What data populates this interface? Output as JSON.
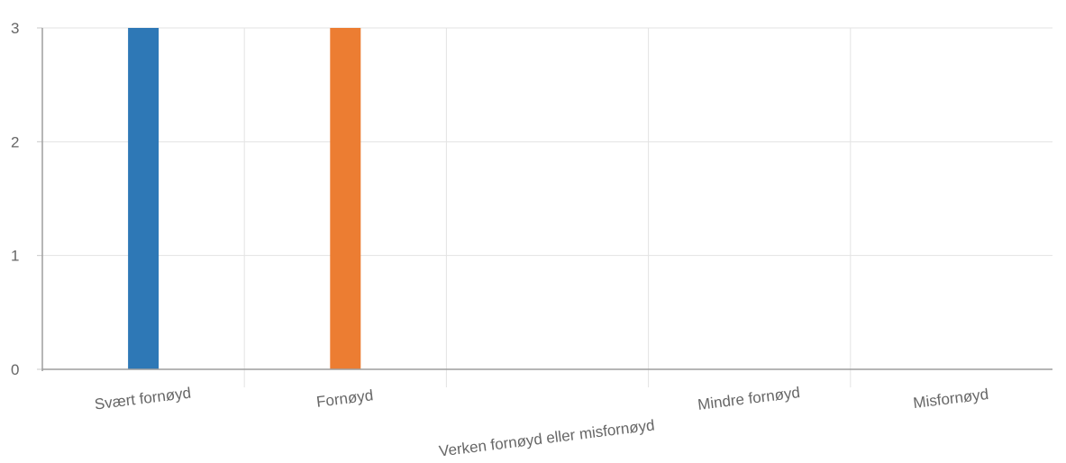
{
  "chart_data": {
    "type": "bar",
    "categories": [
      "Svært fornøyd",
      "Fornøyd",
      "Verken fornøyd eller misfornøyd",
      "Mindre fornøyd",
      "Misfornøyd"
    ],
    "series": [
      {
        "values": [
          3,
          3,
          0,
          0,
          0
        ],
        "colors": [
          "#2e78b6",
          "#ec7d32",
          "#a5a5a5",
          "#ffc000",
          "#5b9bd5"
        ]
      }
    ],
    "y_ticks": [
      "0",
      "1",
      "2",
      "3"
    ],
    "ylim": [
      0,
      3
    ],
    "grid": true,
    "legend": "none",
    "title": "",
    "xlabel": "",
    "ylabel": ""
  }
}
